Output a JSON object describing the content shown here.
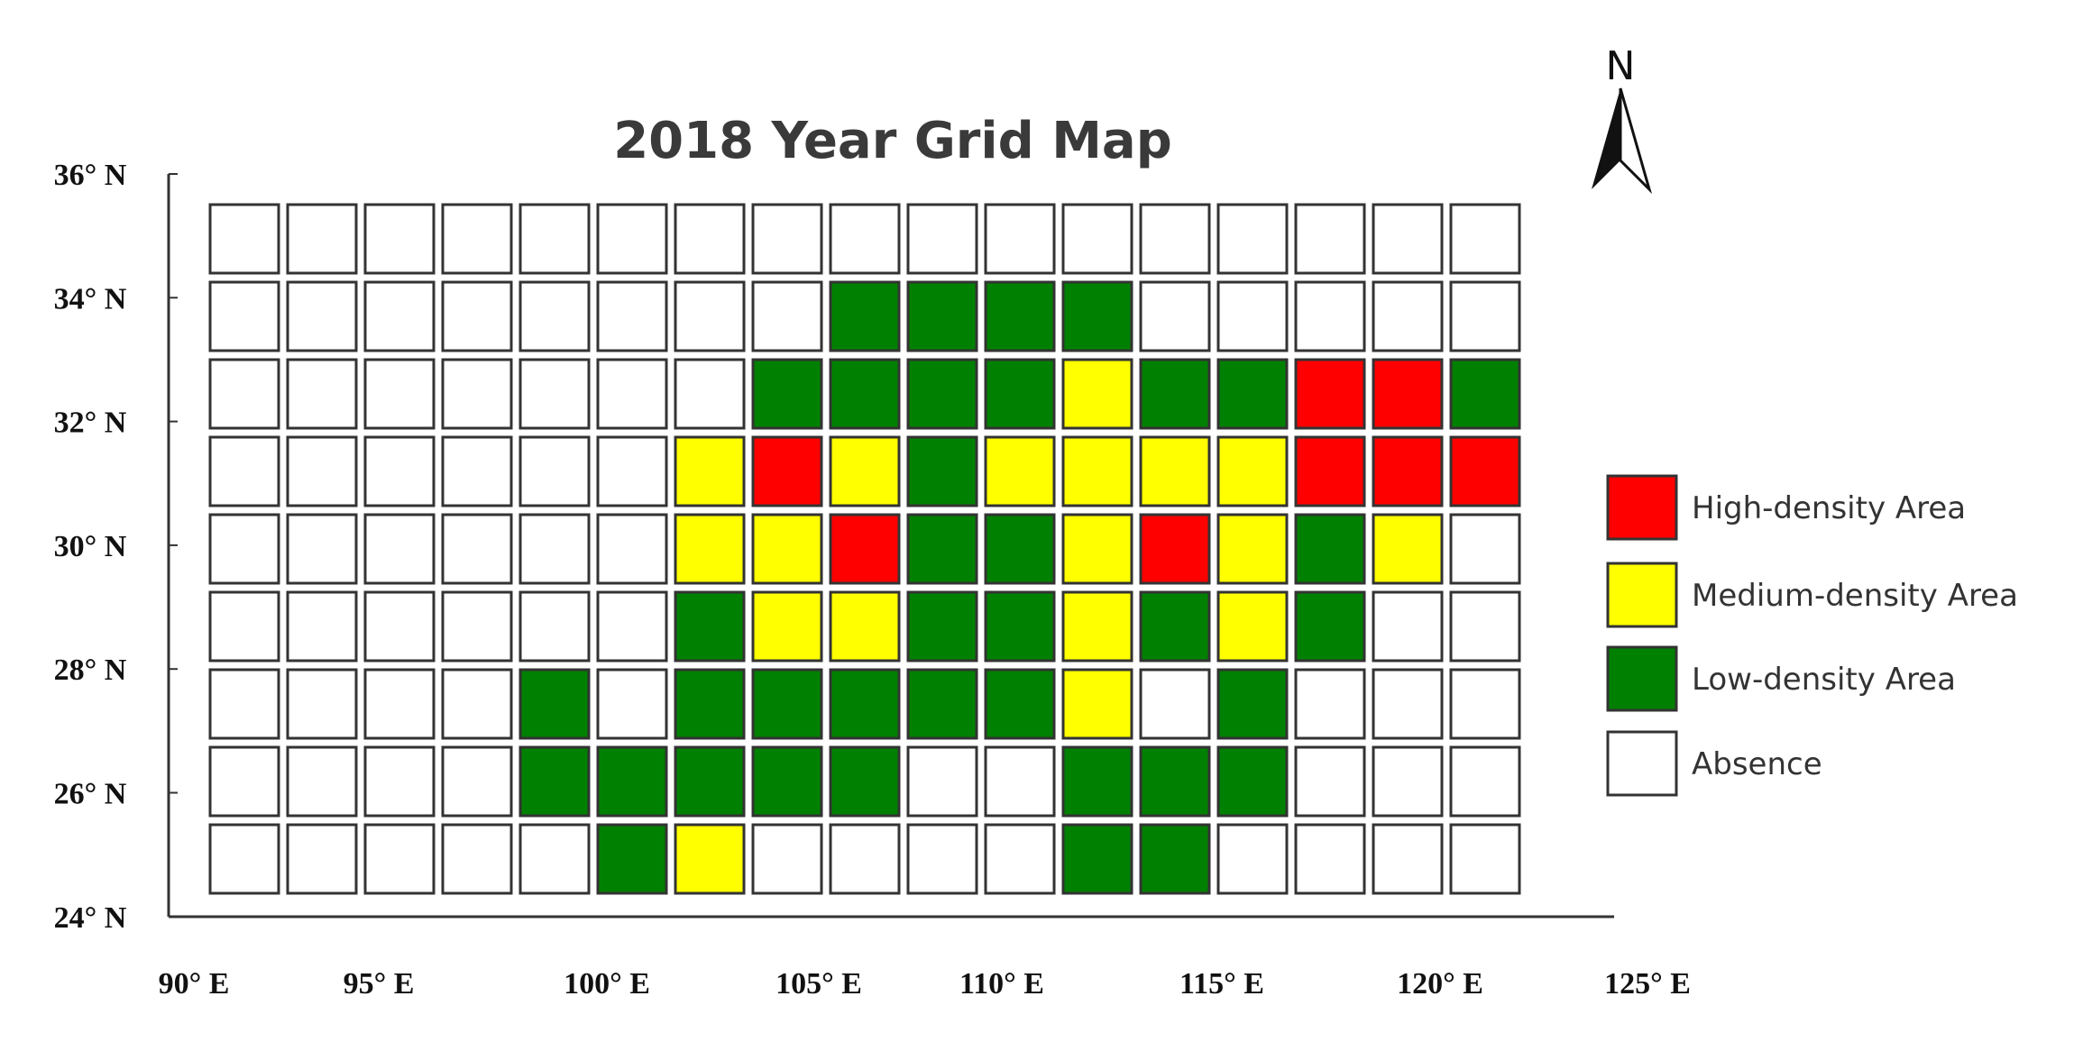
{
  "title": "2018 Year Grid Map",
  "north_label": "N",
  "colors": {
    "high": "#ff0000",
    "medium": "#ffff00",
    "low": "#008000",
    "absence": "#ffffff"
  },
  "legend": [
    {
      "key": "high",
      "label": "High-density Area"
    },
    {
      "key": "medium",
      "label": "Medium-density Area"
    },
    {
      "key": "low",
      "label": "Low-density Area"
    },
    {
      "key": "absence",
      "label": "Absence"
    }
  ],
  "y_axis_labels": [
    "36° N",
    "34° N",
    "32° N",
    "30° N",
    "28° N",
    "26° N",
    "24° N"
  ],
  "x_axis_labels": [
    "90° E",
    "95° E",
    "100° E",
    "105° E",
    "110° E",
    "115° E",
    "120° E",
    "125° E"
  ],
  "chart_data": {
    "type": "heatmap",
    "title": "2018 Year Grid Map",
    "rows": 9,
    "cols": 17,
    "row_order": "north-to-south",
    "legend_placement": "right",
    "grid": [
      [
        "a",
        "a",
        "a",
        "a",
        "a",
        "a",
        "a",
        "a",
        "a",
        "a",
        "a",
        "a",
        "a",
        "a",
        "a",
        "a",
        "a"
      ],
      [
        "a",
        "a",
        "a",
        "a",
        "a",
        "a",
        "a",
        "a",
        "l",
        "l",
        "l",
        "l",
        "a",
        "a",
        "a",
        "a",
        "a"
      ],
      [
        "a",
        "a",
        "a",
        "a",
        "a",
        "a",
        "a",
        "l",
        "l",
        "l",
        "l",
        "m",
        "l",
        "l",
        "h",
        "h",
        "l"
      ],
      [
        "a",
        "a",
        "a",
        "a",
        "a",
        "a",
        "m",
        "h",
        "m",
        "l",
        "m",
        "m",
        "m",
        "m",
        "h",
        "h",
        "h"
      ],
      [
        "a",
        "a",
        "a",
        "a",
        "a",
        "a",
        "m",
        "m",
        "h",
        "l",
        "l",
        "m",
        "h",
        "m",
        "l",
        "m",
        "a"
      ],
      [
        "a",
        "a",
        "a",
        "a",
        "a",
        "a",
        "l",
        "m",
        "m",
        "l",
        "l",
        "m",
        "l",
        "m",
        "l",
        "a",
        "a"
      ],
      [
        "a",
        "a",
        "a",
        "a",
        "l",
        "a",
        "l",
        "l",
        "l",
        "l",
        "l",
        "m",
        "a",
        "l",
        "a",
        "a",
        "a"
      ],
      [
        "a",
        "a",
        "a",
        "a",
        "l",
        "l",
        "l",
        "l",
        "l",
        "a",
        "a",
        "l",
        "l",
        "l",
        "a",
        "a",
        "a"
      ],
      [
        "a",
        "a",
        "a",
        "a",
        "a",
        "l",
        "m",
        "a",
        "a",
        "a",
        "a",
        "l",
        "l",
        "a",
        "a",
        "a",
        "a"
      ]
    ],
    "key": {
      "h": "High-density Area",
      "m": "Medium-density Area",
      "l": "Low-density Area",
      "a": "Absence"
    }
  }
}
